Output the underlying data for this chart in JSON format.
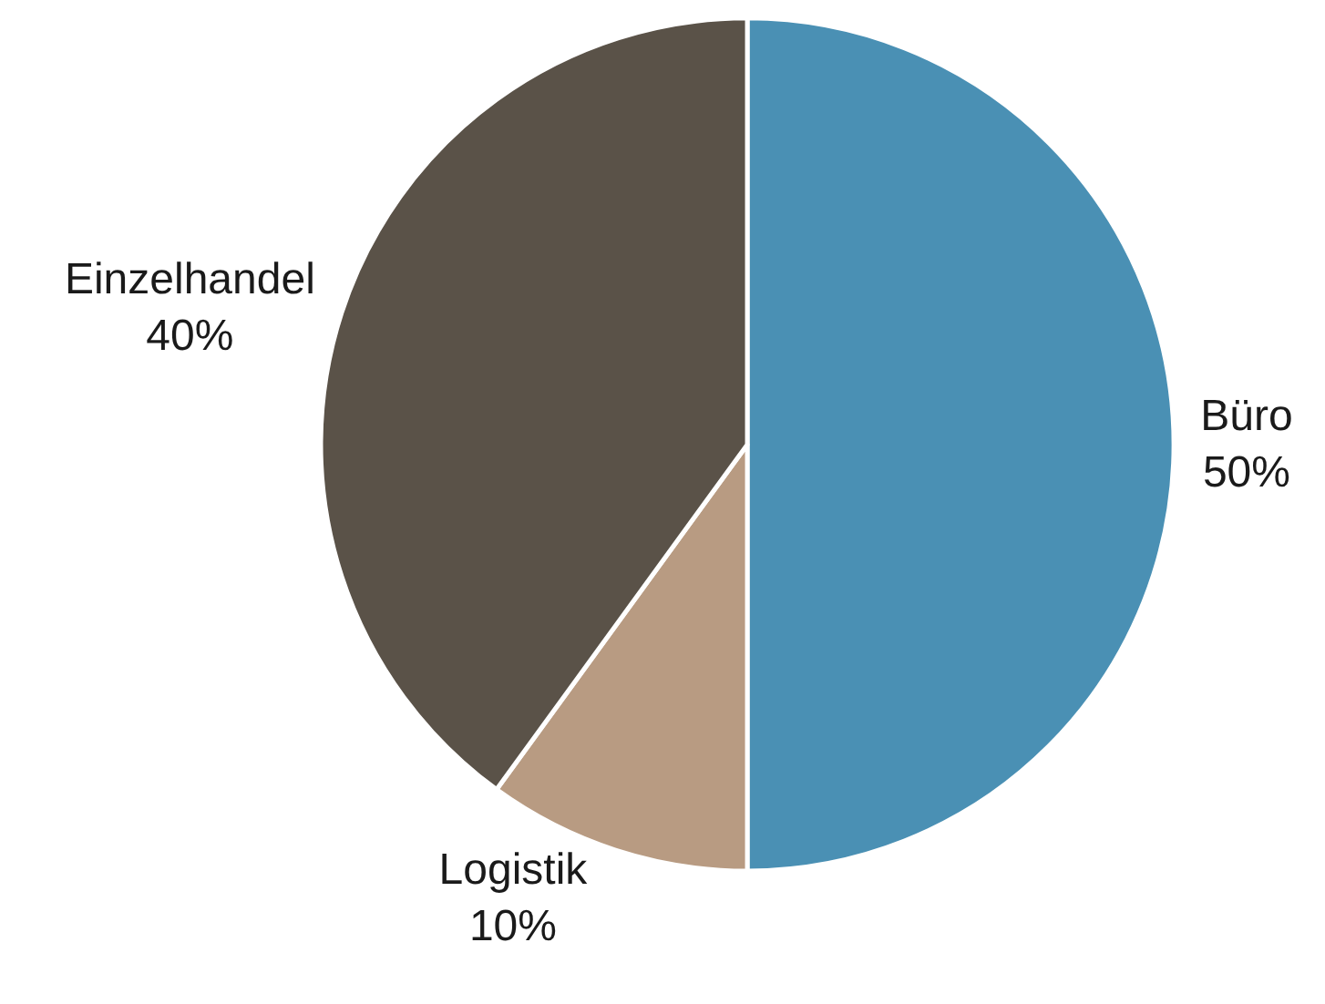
{
  "chart_data": {
    "type": "pie",
    "categories": [
      "Büro",
      "Logistik",
      "Einzelhandel"
    ],
    "values": [
      50,
      10,
      40
    ],
    "value_labels": [
      "50%",
      "10%",
      "40%"
    ],
    "colors": [
      "#4a90b4",
      "#b89b82",
      "#5a5248"
    ],
    "legend": false
  }
}
